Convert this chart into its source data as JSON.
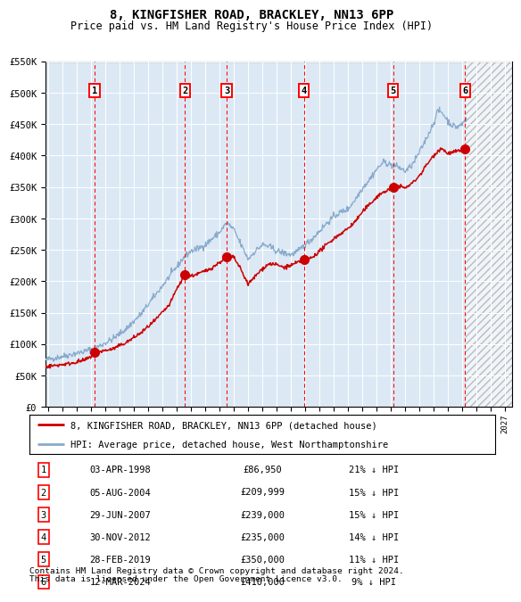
{
  "title": "8, KINGFISHER ROAD, BRACKLEY, NN13 6PP",
  "subtitle": "Price paid vs. HM Land Registry's House Price Index (HPI)",
  "ylim": [
    0,
    550000
  ],
  "yticks": [
    0,
    50000,
    100000,
    150000,
    200000,
    250000,
    300000,
    350000,
    400000,
    450000,
    500000,
    550000
  ],
  "ytick_labels": [
    "£0",
    "£50K",
    "£100K",
    "£150K",
    "£200K",
    "£250K",
    "£300K",
    "£350K",
    "£400K",
    "£450K",
    "£500K",
    "£550K"
  ],
  "xlim_start": 1994.8,
  "xlim_end": 2027.5,
  "background_color": "#dce9f5",
  "future_start": 2024.25,
  "sale_points": [
    {
      "num": 1,
      "year": 1998.25,
      "price": 86950,
      "date": "03-APR-1998",
      "pct": "21%",
      "label": "£86,950"
    },
    {
      "num": 2,
      "year": 2004.58,
      "price": 209999,
      "date": "05-AUG-2004",
      "pct": "15%",
      "label": "£209,999"
    },
    {
      "num": 3,
      "year": 2007.49,
      "price": 239000,
      "date": "29-JUN-2007",
      "pct": "15%",
      "label": "£239,000"
    },
    {
      "num": 4,
      "year": 2012.91,
      "price": 235000,
      "date": "30-NOV-2012",
      "pct": "14%",
      "label": "£235,000"
    },
    {
      "num": 5,
      "year": 2019.16,
      "price": 350000,
      "date": "28-FEB-2019",
      "pct": "11%",
      "label": "£350,000"
    },
    {
      "num": 6,
      "year": 2024.2,
      "price": 410000,
      "date": "12-MAR-2024",
      "pct": "9%",
      "label": "£410,000"
    }
  ],
  "legend_line1": "8, KINGFISHER ROAD, BRACKLEY, NN13 6PP (detached house)",
  "legend_line2": "HPI: Average price, detached house, West Northamptonshire",
  "footer1": "Contains HM Land Registry data © Crown copyright and database right 2024.",
  "footer2": "This data is licensed under the Open Government Licence v3.0.",
  "red_line_color": "#cc0000",
  "hpi_color": "#88aacc"
}
